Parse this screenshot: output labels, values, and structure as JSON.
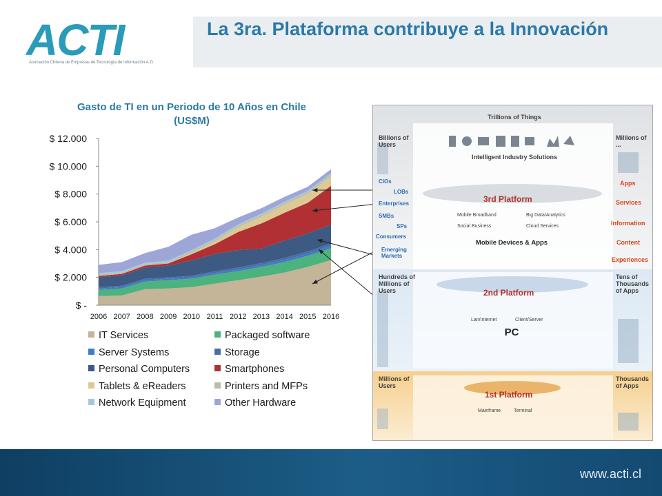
{
  "logo": {
    "word": "ACTI",
    "sub": "Asociación Chilena de Empresas de Tecnología de Información A.G."
  },
  "slide_title": "La 3ra. Plataforma contribuye a la Innovación",
  "footer_url": "www.acti.cl",
  "colors": {
    "accent": "#2a79a8",
    "footer": "#1c5d87"
  },
  "chart_data": {
    "type": "area",
    "stacked": true,
    "title": "Gasto de TI en un Periodo de 10 Años en Chile (US$M)",
    "x": [
      2006,
      2007,
      2008,
      2009,
      2010,
      2011,
      2012,
      2013,
      2014,
      2015,
      2016
    ],
    "ylim": [
      0,
      12000
    ],
    "y_ticks": [
      0,
      2000,
      4000,
      6000,
      8000,
      10000,
      12000
    ],
    "y_tick_labels": [
      "$ -",
      "$ 2.000",
      "$ 4.000",
      "$ 6.000",
      "$ 8.000",
      "$ 10.000",
      "$ 12.000"
    ],
    "grid": false,
    "legend_position": "bottom",
    "series": [
      {
        "name": "IT Services",
        "color": "#c4b498",
        "values": [
          650,
          700,
          1150,
          1200,
          1300,
          1550,
          1800,
          2050,
          2350,
          2750,
          3250
        ]
      },
      {
        "name": "Packaged software",
        "color": "#4cb27e",
        "values": [
          450,
          500,
          550,
          600,
          600,
          650,
          650,
          700,
          750,
          800,
          850
        ]
      },
      {
        "name": "Server Systems",
        "color": "#3e7dc4",
        "values": [
          100,
          100,
          100,
          100,
          110,
          120,
          130,
          140,
          150,
          160,
          170
        ]
      },
      {
        "name": "Storage",
        "color": "#4a6ea8",
        "values": [
          100,
          100,
          100,
          100,
          110,
          120,
          130,
          140,
          150,
          160,
          170
        ]
      },
      {
        "name": "Personal Computers",
        "color": "#3c5a82",
        "values": [
          700,
          750,
          800,
          850,
          1100,
          1250,
          1250,
          1050,
          1250,
          1300,
          1350
        ]
      },
      {
        "name": "Smartphones",
        "color": "#b03034",
        "values": [
          100,
          100,
          150,
          150,
          450,
          700,
          1300,
          1800,
          2000,
          2200,
          2800
        ]
      },
      {
        "name": "Tablets & eReaders",
        "color": "#dcc994",
        "values": [
          0,
          0,
          0,
          0,
          100,
          200,
          350,
          500,
          600,
          650,
          700
        ]
      },
      {
        "name": "Printers and MFPs",
        "color": "#b8bea8",
        "values": [
          100,
          100,
          100,
          100,
          100,
          100,
          100,
          100,
          100,
          100,
          100
        ]
      },
      {
        "name": "Network Equipment",
        "color": "#a6c8de",
        "values": [
          100,
          100,
          100,
          100,
          100,
          100,
          100,
          100,
          100,
          100,
          100
        ]
      },
      {
        "name": "Other Hardware",
        "color": "#9ea6d8",
        "values": [
          600,
          650,
          700,
          1000,
          1100,
          750,
          500,
          400,
          350,
          300,
          300
        ]
      }
    ]
  },
  "platform": {
    "trillions": "Trillions of Things",
    "billions": "Billions of Users",
    "millions_apps": "Millions of ...",
    "intelligent": "Intelligent Industry Solutions",
    "left_list": [
      "CIOs",
      "LOBs",
      "Enterprises",
      "SMBs",
      "SPs",
      "Consumers",
      "Emerging Markets"
    ],
    "right_list": [
      "Apps",
      "Services",
      "Information",
      "Content",
      "Experiences"
    ],
    "third_badge": "3rd Platform",
    "third_items": [
      "Mobile Broadband",
      "Big Data/Analytics",
      "Social Business",
      "Cloud Services"
    ],
    "third_caption": "Mobile Devices & Apps",
    "hundreds": "Hundreds of Millions of Users",
    "tens": "Tens of Thousands of Apps",
    "second_badge": "2nd Platform",
    "second_items": [
      "Lan/Internet",
      "Client/Server"
    ],
    "second_caption": "PC",
    "millions_users": "Millions of Users",
    "thousands": "Thousands of Apps",
    "first_badge": "1st Platform",
    "first_items": [
      "Mainframe",
      "Terminal"
    ]
  }
}
